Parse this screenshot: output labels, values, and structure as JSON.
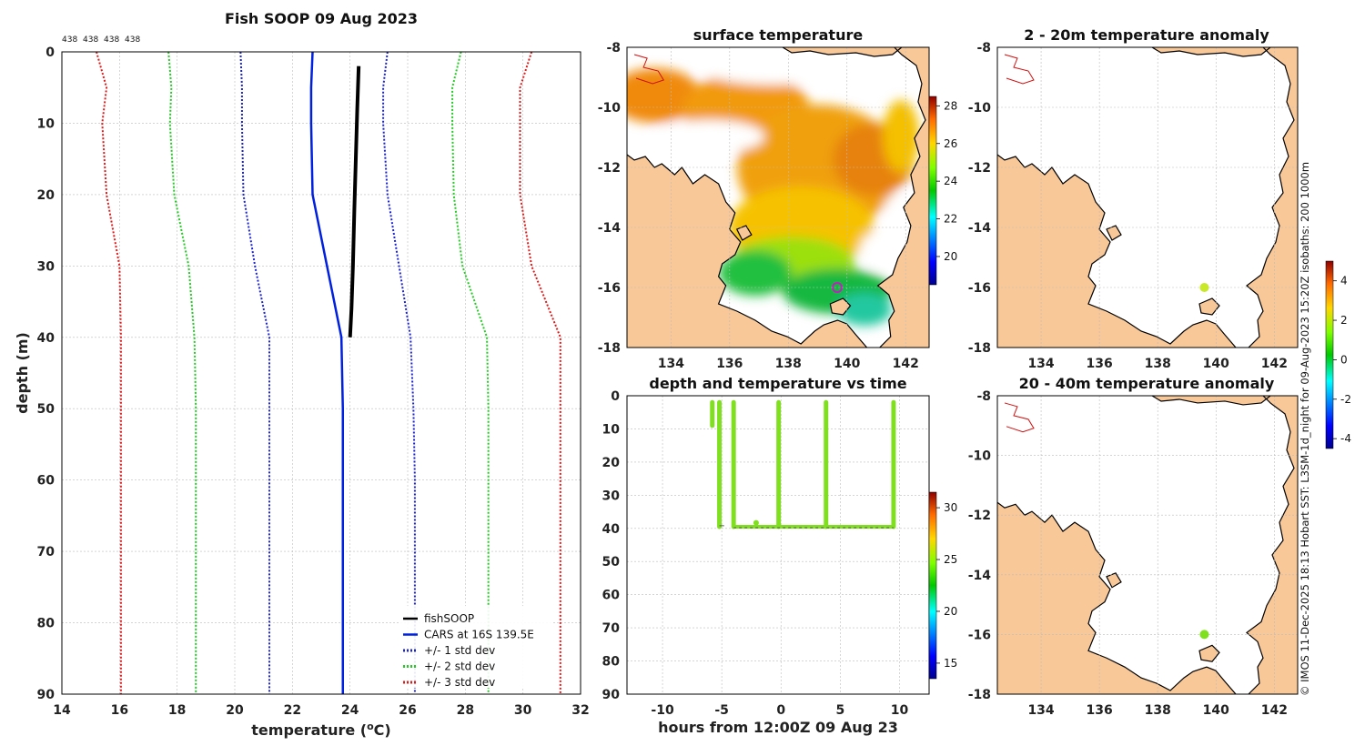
{
  "figure_title": "Fish SOOP 09 Aug 2023",
  "credit": "© IMOS 11-Dec-2025 18:13 Hobart SST: L3SM-1d_night for 09-Aug-2023 15:20Z isobaths: 200  1000m",
  "colors": {
    "fish": "#000000",
    "cars": "#0020e0",
    "std1": "#1a22d8",
    "std2": "#22cc22",
    "std3": "#e01a1a",
    "points": "#80e020",
    "land": "#f8c898"
  },
  "chart_data": [
    {
      "id": "profile",
      "type": "line",
      "title": "Fish SOOP 09 Aug 2023",
      "xlabel": "temperature (°C)",
      "ylabel": "depth (m)",
      "xlim": [
        14,
        32
      ],
      "ylim": [
        90,
        0
      ],
      "xticks": [
        "14",
        "16",
        "18",
        "20",
        "22",
        "24",
        "26",
        "28",
        "30",
        "32"
      ],
      "yticks": [
        "0",
        "10",
        "20",
        "30",
        "40",
        "50",
        "60",
        "70",
        "80",
        "90"
      ],
      "count_labels": [
        "438",
        "438",
        "438",
        "438"
      ],
      "depth": [
        0,
        5,
        10,
        20,
        30,
        40,
        50,
        60,
        70,
        80,
        90
      ],
      "series": [
        {
          "name": "fishSOOP",
          "style": "solid",
          "color": "#000000",
          "x": [
            24.3,
            24.25,
            24.2,
            24.15,
            24.1,
            24.05,
            24.0
          ],
          "y": [
            2,
            8,
            15,
            22,
            30,
            36,
            40
          ]
        },
        {
          "name": "CARS at 16S 139.5E",
          "style": "solid",
          "color": "#0020e0",
          "values": [
            22.7,
            22.65,
            22.65,
            22.7,
            23.2,
            23.7,
            23.75,
            23.75,
            23.75,
            23.75,
            23.75
          ]
        },
        {
          "name": "+/- 1 std dev",
          "style": "dotted",
          "color": "#1a22d8",
          "values": [
            20.2,
            20.25,
            20.25,
            20.3,
            20.7,
            21.2,
            21.2,
            21.2,
            21.2,
            21.2,
            21.2
          ],
          "values2": [
            25.3,
            25.15,
            25.15,
            25.3,
            25.7,
            26.1,
            26.2,
            26.25,
            26.25,
            26.25,
            26.25
          ]
        },
        {
          "name": "+/- 2 std dev",
          "style": "dotted",
          "color": "#22cc22",
          "values": [
            17.7,
            17.8,
            17.75,
            17.9,
            18.4,
            18.6,
            18.65,
            18.65,
            18.65,
            18.65,
            18.65
          ],
          "values2": [
            27.85,
            27.55,
            27.55,
            27.6,
            27.9,
            28.75,
            28.8,
            28.8,
            28.8,
            28.8,
            28.8
          ]
        },
        {
          "name": "+/- 3 std dev",
          "style": "dotted",
          "color": "#e01a1a",
          "values": [
            15.2,
            15.55,
            15.4,
            15.55,
            16.0,
            16.05,
            16.05,
            16.05,
            16.05,
            16.05,
            16.05
          ],
          "values2": [
            30.3,
            29.9,
            29.9,
            29.9,
            30.3,
            31.3,
            31.3,
            31.3,
            31.3,
            31.3,
            31.3
          ]
        }
      ],
      "legend": [
        "fishSOOP",
        "CARS at 16S 139.5E",
        "+/- 1 std dev",
        "+/- 2 std dev",
        "+/- 3 std dev"
      ],
      "legend_position": "bottom-right"
    },
    {
      "id": "sst_map",
      "type": "heatmap",
      "title": "surface temperature",
      "xlim": [
        132.5,
        142.8
      ],
      "ylim": [
        -18,
        -8
      ],
      "xticks": [
        "134",
        "136",
        "138",
        "140",
        "142"
      ],
      "yticks": [
        "-8",
        "-10",
        "-12",
        "-14",
        "-16",
        "-18"
      ],
      "colorbar": {
        "range": [
          18.5,
          28.5
        ],
        "ticks": [
          "28",
          "26",
          "24",
          "22",
          "20"
        ]
      },
      "marker": {
        "lon": 139.5,
        "lat": -16.0
      }
    },
    {
      "id": "depth_time",
      "type": "scatter",
      "title": "depth and temperature vs time",
      "xlabel": "hours from 12:00Z 09 Aug 23",
      "xlim": [
        -13,
        12.5
      ],
      "ylim": [
        90,
        0
      ],
      "xticks": [
        "-10",
        "-5",
        "0",
        "5",
        "10"
      ],
      "yticks": [
        "0",
        "10",
        "20",
        "30",
        "40",
        "50",
        "60",
        "70",
        "80",
        "90"
      ],
      "colorbar": {
        "range": [
          13.5,
          31.5
        ],
        "ticks": [
          "30",
          "25",
          "20",
          "15"
        ]
      },
      "casts": [
        -5.2,
        -4.0,
        -0.2,
        3.8,
        9.5
      ],
      "bottom_depth": 39.5
    },
    {
      "id": "anom_2_20",
      "type": "scatter",
      "title": "2 - 20m temperature anomaly",
      "xlim": [
        132.5,
        142.8
      ],
      "ylim": [
        -18,
        -8
      ],
      "xticks": [
        "134",
        "136",
        "138",
        "140",
        "142"
      ],
      "yticks": [
        "-8",
        "-10",
        "-12",
        "-14",
        "-16",
        "-18"
      ],
      "point": {
        "lon": 139.6,
        "lat": -16.0,
        "value": 1.5
      }
    },
    {
      "id": "anom_20_40",
      "type": "scatter",
      "title": "20 - 40m temperature anomaly",
      "xlim": [
        132.5,
        142.8
      ],
      "ylim": [
        -18,
        -8
      ],
      "xticks": [
        "134",
        "136",
        "138",
        "140",
        "142"
      ],
      "yticks": [
        "-8",
        "-10",
        "-12",
        "-14",
        "-16",
        "-18"
      ],
      "point": {
        "lon": 139.6,
        "lat": -16.0,
        "value": 1.2
      },
      "colorbar": {
        "range": [
          -4.5,
          5
        ],
        "ticks": [
          "4",
          "2",
          "0",
          "-2",
          "-4"
        ]
      }
    }
  ]
}
